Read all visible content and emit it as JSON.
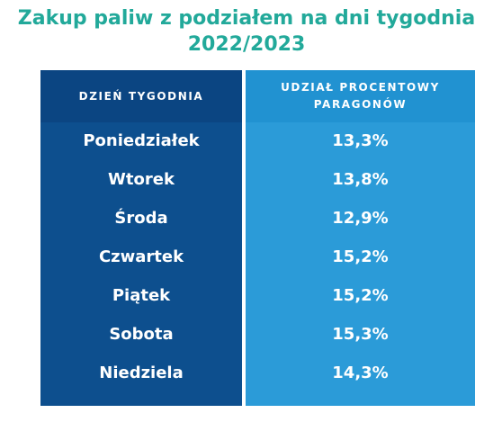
{
  "title": {
    "line1": "Zakup paliw z podziałem na dni tygodnia",
    "line2": "2022/2023"
  },
  "colors": {
    "title": "#22a99a",
    "left_column": "#0d4f8e",
    "right_column": "#2b9bd8"
  },
  "table": {
    "headers": {
      "day": "DZIEŃ TYGODNIA",
      "share_line1": "UDZIAŁ PROCENTOWY",
      "share_line2": "PARAGONÓW"
    },
    "rows": [
      {
        "day": "Poniedziałek",
        "share": "13,3%"
      },
      {
        "day": "Wtorek",
        "share": "13,8%"
      },
      {
        "day": "Środa",
        "share": "12,9%"
      },
      {
        "day": "Czwartek",
        "share": "15,2%"
      },
      {
        "day": "Piątek",
        "share": "15,2%"
      },
      {
        "day": "Sobota",
        "share": "15,3%"
      },
      {
        "day": "Niedziela",
        "share": "14,3%"
      }
    ]
  },
  "chart_data": {
    "type": "table",
    "title": "Zakup paliw z podziałem na dni tygodnia 2022/2023",
    "columns": [
      "DZIEŃ TYGODNIA",
      "UDZIAŁ PROCENTOWY PARAGONÓW"
    ],
    "categories": [
      "Poniedziałek",
      "Wtorek",
      "Środa",
      "Czwartek",
      "Piątek",
      "Sobota",
      "Niedziela"
    ],
    "values": [
      13.3,
      13.8,
      12.9,
      15.2,
      15.2,
      15.3,
      14.3
    ]
  }
}
